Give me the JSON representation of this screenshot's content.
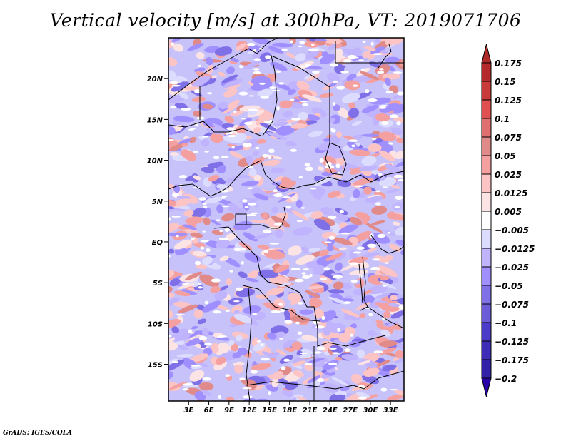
{
  "chart_data": {
    "type": "heatmap",
    "title": "Vertical velocity [m/s] at 300hPa, VT: 2019071706",
    "variable": "Vertical velocity",
    "units": "m/s",
    "level": "300hPa",
    "valid_time": "2019071706",
    "xlabel": "",
    "ylabel": "",
    "x_ticks": [
      "3E",
      "6E",
      "9E",
      "12E",
      "15E",
      "18E",
      "21E",
      "24E",
      "27E",
      "30E",
      "33E"
    ],
    "x_tick_values": [
      3,
      6,
      9,
      12,
      15,
      18,
      21,
      24,
      27,
      30,
      33
    ],
    "y_ticks": [
      "20N",
      "15N",
      "10N",
      "5N",
      "EQ",
      "5S",
      "10S",
      "15S"
    ],
    "y_tick_values": [
      20,
      15,
      10,
      5,
      0,
      -5,
      -10,
      -15
    ],
    "xlim": [
      0,
      35
    ],
    "ylim": [
      -19.5,
      25
    ],
    "region": "Central Africa",
    "colorbar": {
      "placement": "right",
      "extend": "both",
      "labels": [
        "0.175",
        "0.15",
        "0.125",
        "0.1",
        "0.075",
        "0.05",
        "0.025",
        "0.0125",
        "0.005",
        "-0.005",
        "-0.0125",
        "-0.025",
        "-0.05",
        "-0.075",
        "-0.1",
        "-0.125",
        "-0.175",
        "-0.2"
      ],
      "levels": [
        0.175,
        0.15,
        0.125,
        0.1,
        0.075,
        0.05,
        0.025,
        0.0125,
        0.005,
        -0.005,
        -0.0125,
        -0.025,
        -0.05,
        -0.075,
        -0.1,
        -0.125,
        -0.175,
        -0.2
      ],
      "colors": [
        "#b02a2a",
        "#b52a2a",
        "#c93a3a",
        "#e05050",
        "#e07070",
        "#e08a8a",
        "#f4a0a0",
        "#fcc4c4",
        "#fde4e4",
        "#ffffff",
        "#dcdcff",
        "#c0b4ff",
        "#a090ff",
        "#8070e8",
        "#6c5cd8",
        "#4a3cc8",
        "#3e2cb8",
        "#3220a8",
        "#2a00a8"
      ]
    }
  },
  "footer": "GrADS: IGES/COLA"
}
